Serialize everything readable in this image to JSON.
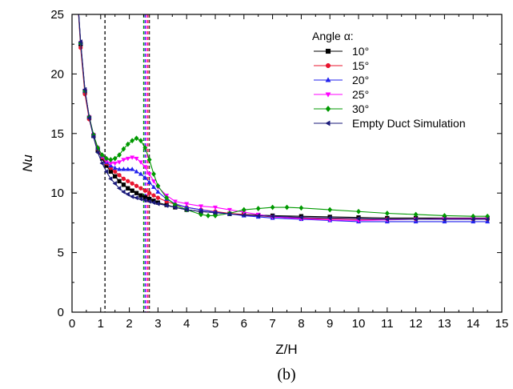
{
  "chart_data": {
    "type": "line",
    "xlabel": "Z/H",
    "ylabel": "Nu",
    "caption": "(b)",
    "xlim": [
      0,
      15
    ],
    "ylim": [
      0,
      25
    ],
    "xticks": [
      0,
      0.5,
      1,
      1.5,
      2,
      2.5,
      3,
      3.5,
      4,
      4.5,
      5,
      5.5,
      6,
      6.5,
      7,
      7.5,
      8,
      8.5,
      9,
      9.5,
      10,
      10.5,
      11,
      11.5,
      12,
      12.5,
      13,
      13.5,
      14,
      14.5,
      15
    ],
    "xtick_labels": [
      "0",
      "1",
      "2",
      "3",
      "4",
      "5",
      "6",
      "7",
      "8",
      "9",
      "10",
      "11",
      "12",
      "13",
      "14",
      "15"
    ],
    "yticks": [
      0,
      5,
      10,
      15,
      20,
      25
    ],
    "ytick_labels": [
      "0",
      "5",
      "10",
      "15",
      "20",
      "25"
    ],
    "grid": false,
    "legend_title": "Angle α:",
    "legend_position": "top-right",
    "reference_lines": [
      {
        "x": 1.15,
        "color": "#000000"
      },
      {
        "x": 2.5,
        "color": "#009900"
      },
      {
        "x": 2.55,
        "color": "#2222ee"
      },
      {
        "x": 2.6,
        "color": "#ff00ff"
      },
      {
        "x": 2.65,
        "color": "#e8142e"
      },
      {
        "x": 2.7,
        "color": "#333333"
      }
    ],
    "series": [
      {
        "name": "10°",
        "color": "#000000",
        "marker": "square",
        "points": [
          [
            0.15,
            28
          ],
          [
            0.3,
            22.5
          ],
          [
            0.45,
            18.5
          ],
          [
            0.6,
            16.3
          ],
          [
            0.75,
            14.8
          ],
          [
            0.9,
            13.6
          ],
          [
            1.05,
            12.9
          ],
          [
            1.2,
            12.3
          ],
          [
            1.35,
            11.8
          ],
          [
            1.5,
            11.4
          ],
          [
            1.65,
            11.0
          ],
          [
            1.8,
            10.7
          ],
          [
            1.95,
            10.4
          ],
          [
            2.1,
            10.2
          ],
          [
            2.25,
            10.0
          ],
          [
            2.4,
            9.8
          ],
          [
            2.55,
            9.65
          ],
          [
            2.7,
            9.5
          ],
          [
            2.85,
            9.35
          ],
          [
            3,
            9.2
          ],
          [
            3.3,
            9.0
          ],
          [
            3.6,
            8.8
          ],
          [
            4,
            8.6
          ],
          [
            4.5,
            8.45
          ],
          [
            5,
            8.35
          ],
          [
            5.5,
            8.25
          ],
          [
            6,
            8.2
          ],
          [
            6.5,
            8.15
          ],
          [
            7,
            8.1
          ],
          [
            8,
            8.05
          ],
          [
            9,
            8.0
          ],
          [
            10,
            7.95
          ],
          [
            11,
            7.9
          ],
          [
            12,
            7.9
          ],
          [
            13,
            7.9
          ],
          [
            14,
            7.9
          ],
          [
            14.5,
            7.9
          ]
        ]
      },
      {
        "name": "15°",
        "color": "#e8142e",
        "marker": "circle",
        "points": [
          [
            0.15,
            28
          ],
          [
            0.3,
            22.2
          ],
          [
            0.45,
            18.3
          ],
          [
            0.6,
            16.2
          ],
          [
            0.75,
            14.8
          ],
          [
            0.9,
            13.7
          ],
          [
            1.05,
            13.0
          ],
          [
            1.2,
            12.5
          ],
          [
            1.35,
            12.1
          ],
          [
            1.5,
            11.8
          ],
          [
            1.65,
            11.5
          ],
          [
            1.8,
            11.2
          ],
          [
            1.95,
            11.0
          ],
          [
            2.1,
            10.8
          ],
          [
            2.25,
            10.6
          ],
          [
            2.4,
            10.4
          ],
          [
            2.55,
            10.2
          ],
          [
            2.7,
            10.0
          ],
          [
            2.85,
            9.8
          ],
          [
            3,
            9.6
          ],
          [
            3.3,
            9.3
          ],
          [
            3.6,
            9.05
          ],
          [
            4,
            8.8
          ],
          [
            4.5,
            8.6
          ],
          [
            5,
            8.45
          ],
          [
            5.5,
            8.3
          ],
          [
            6,
            8.2
          ],
          [
            6.5,
            8.1
          ],
          [
            7,
            8.0
          ],
          [
            8,
            7.9
          ],
          [
            9,
            7.85
          ],
          [
            10,
            7.8
          ],
          [
            11,
            7.8
          ],
          [
            12,
            7.8
          ],
          [
            13,
            7.8
          ],
          [
            14,
            7.8
          ],
          [
            14.5,
            7.8
          ]
        ]
      },
      {
        "name": "20°",
        "color": "#2222ee",
        "marker": "triangle-up",
        "points": [
          [
            0.15,
            28
          ],
          [
            0.3,
            22.6
          ],
          [
            0.45,
            18.6
          ],
          [
            0.6,
            16.4
          ],
          [
            0.75,
            14.9
          ],
          [
            0.9,
            13.8
          ],
          [
            1.05,
            13.1
          ],
          [
            1.2,
            12.6
          ],
          [
            1.35,
            12.3
          ],
          [
            1.5,
            12.1
          ],
          [
            1.65,
            12.0
          ],
          [
            1.8,
            12.0
          ],
          [
            1.95,
            12.0
          ],
          [
            2.1,
            12.0
          ],
          [
            2.25,
            11.8
          ],
          [
            2.4,
            11.6
          ],
          [
            2.55,
            11.3
          ],
          [
            2.7,
            10.9
          ],
          [
            2.85,
            10.5
          ],
          [
            3,
            10.1
          ],
          [
            3.3,
            9.5
          ],
          [
            3.6,
            9.1
          ],
          [
            4,
            8.8
          ],
          [
            4.5,
            8.6
          ],
          [
            5,
            8.4
          ],
          [
            5.5,
            8.25
          ],
          [
            6,
            8.1
          ],
          [
            6.5,
            8.0
          ],
          [
            7,
            7.9
          ],
          [
            8,
            7.8
          ],
          [
            9,
            7.7
          ],
          [
            10,
            7.6
          ],
          [
            11,
            7.6
          ],
          [
            12,
            7.6
          ],
          [
            13,
            7.6
          ],
          [
            14,
            7.6
          ],
          [
            14.5,
            7.6
          ]
        ]
      },
      {
        "name": "25°",
        "color": "#ff00ff",
        "marker": "triangle-down",
        "points": [
          [
            0.15,
            28
          ],
          [
            0.3,
            22.6
          ],
          [
            0.45,
            18.6
          ],
          [
            0.6,
            16.4
          ],
          [
            0.75,
            14.9
          ],
          [
            0.9,
            13.8
          ],
          [
            1.05,
            13.1
          ],
          [
            1.2,
            12.7
          ],
          [
            1.35,
            12.5
          ],
          [
            1.5,
            12.5
          ],
          [
            1.65,
            12.6
          ],
          [
            1.8,
            12.8
          ],
          [
            1.95,
            12.9
          ],
          [
            2.1,
            13.0
          ],
          [
            2.25,
            12.9
          ],
          [
            2.4,
            12.6
          ],
          [
            2.55,
            12.2
          ],
          [
            2.7,
            11.6
          ],
          [
            2.85,
            11.0
          ],
          [
            3,
            10.5
          ],
          [
            3.3,
            9.8
          ],
          [
            3.6,
            9.3
          ],
          [
            4,
            9.1
          ],
          [
            4.5,
            8.9
          ],
          [
            5,
            8.8
          ],
          [
            5.5,
            8.6
          ],
          [
            6,
            8.4
          ],
          [
            6.5,
            8.2
          ],
          [
            7,
            8.0
          ],
          [
            8,
            7.85
          ],
          [
            9,
            7.75
          ],
          [
            10,
            7.7
          ],
          [
            11,
            7.75
          ],
          [
            12,
            7.8
          ],
          [
            13,
            7.85
          ],
          [
            14,
            7.85
          ],
          [
            14.5,
            7.85
          ]
        ]
      },
      {
        "name": "30°",
        "color": "#009900",
        "marker": "diamond",
        "points": [
          [
            0.15,
            28
          ],
          [
            0.3,
            22.6
          ],
          [
            0.45,
            18.6
          ],
          [
            0.6,
            16.4
          ],
          [
            0.75,
            14.9
          ],
          [
            0.9,
            13.8
          ],
          [
            1.05,
            13.2
          ],
          [
            1.2,
            12.9
          ],
          [
            1.35,
            12.8
          ],
          [
            1.5,
            12.9
          ],
          [
            1.65,
            13.2
          ],
          [
            1.8,
            13.7
          ],
          [
            1.95,
            14.1
          ],
          [
            2.1,
            14.4
          ],
          [
            2.25,
            14.6
          ],
          [
            2.4,
            14.4
          ],
          [
            2.55,
            13.8
          ],
          [
            2.7,
            12.8
          ],
          [
            2.85,
            11.6
          ],
          [
            3,
            10.6
          ],
          [
            3.3,
            9.6
          ],
          [
            3.6,
            9.0
          ],
          [
            4,
            8.6
          ],
          [
            4.5,
            8.2
          ],
          [
            4.75,
            8.1
          ],
          [
            5,
            8.1
          ],
          [
            5.5,
            8.3
          ],
          [
            6,
            8.6
          ],
          [
            6.5,
            8.7
          ],
          [
            7,
            8.8
          ],
          [
            7.5,
            8.8
          ],
          [
            8,
            8.75
          ],
          [
            9,
            8.6
          ],
          [
            10,
            8.45
          ],
          [
            11,
            8.3
          ],
          [
            12,
            8.2
          ],
          [
            13,
            8.1
          ],
          [
            14,
            8.05
          ],
          [
            14.5,
            8.05
          ]
        ]
      },
      {
        "name": "Empty Duct Simulation",
        "color": "#1a1a7a",
        "marker": "triangle-left",
        "points": [
          [
            0.15,
            28
          ],
          [
            0.3,
            22.7
          ],
          [
            0.45,
            18.7
          ],
          [
            0.6,
            16.3
          ],
          [
            0.75,
            14.7
          ],
          [
            0.9,
            13.4
          ],
          [
            1.05,
            12.5
          ],
          [
            1.2,
            11.8
          ],
          [
            1.35,
            11.2
          ],
          [
            1.5,
            10.8
          ],
          [
            1.65,
            10.4
          ],
          [
            1.8,
            10.1
          ],
          [
            1.95,
            9.9
          ],
          [
            2.1,
            9.7
          ],
          [
            2.25,
            9.6
          ],
          [
            2.4,
            9.5
          ],
          [
            2.55,
            9.4
          ],
          [
            2.7,
            9.3
          ],
          [
            2.85,
            9.2
          ],
          [
            3,
            9.1
          ],
          [
            3.3,
            8.95
          ],
          [
            3.6,
            8.8
          ],
          [
            4,
            8.6
          ],
          [
            4.5,
            8.45
          ],
          [
            5,
            8.35
          ],
          [
            5.5,
            8.25
          ],
          [
            6,
            8.15
          ],
          [
            6.5,
            8.1
          ],
          [
            7,
            8.05
          ],
          [
            8,
            7.95
          ],
          [
            9,
            7.9
          ],
          [
            10,
            7.85
          ],
          [
            11,
            7.8
          ],
          [
            12,
            7.8
          ],
          [
            13,
            7.8
          ],
          [
            14,
            7.8
          ],
          [
            14.5,
            7.8
          ]
        ]
      }
    ]
  }
}
